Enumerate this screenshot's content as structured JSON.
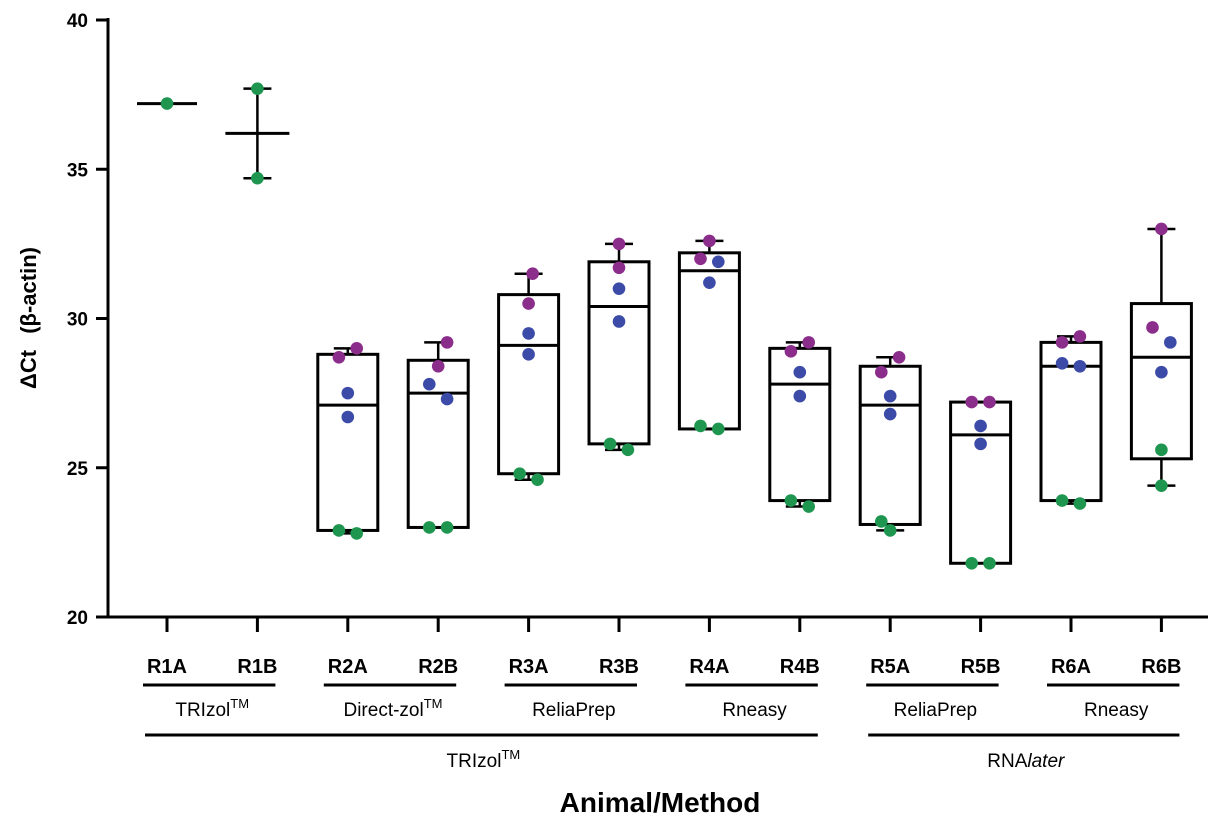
{
  "chart_data": {
    "type": "box",
    "title": "",
    "xlabel": "Animal/Method",
    "ylabel_prefix": "ΔCt",
    "ylabel_paren": "(β-actin)",
    "ylim": [
      20,
      40
    ],
    "yticks": [
      20,
      25,
      30,
      35,
      40
    ],
    "categories": [
      "R1A",
      "R1B",
      "R2A",
      "R2B",
      "R3A",
      "R3B",
      "R4A",
      "R4B",
      "R5A",
      "R5B",
      "R6A",
      "R6B"
    ],
    "colors": {
      "purple": "#8B2E8B",
      "blue": "#3C4BA8",
      "green": "#1F9650"
    },
    "boxes": [
      {
        "cat": "R1A",
        "mode": "line",
        "median": 37.2
      },
      {
        "cat": "R1B",
        "mode": "bar",
        "min": 34.7,
        "median": 36.2,
        "max": 37.7
      },
      {
        "cat": "R2A",
        "mode": "box",
        "min": 22.8,
        "q1": 22.9,
        "median": 27.1,
        "q3": 28.8,
        "max": 29.0
      },
      {
        "cat": "R2B",
        "mode": "box",
        "min": 23.0,
        "q1": 23.0,
        "median": 27.5,
        "q3": 28.6,
        "max": 29.2
      },
      {
        "cat": "R3A",
        "mode": "box",
        "min": 24.6,
        "q1": 24.8,
        "median": 29.1,
        "q3": 30.8,
        "max": 31.5
      },
      {
        "cat": "R3B",
        "mode": "box",
        "min": 25.6,
        "q1": 25.8,
        "median": 30.4,
        "q3": 31.9,
        "max": 32.5
      },
      {
        "cat": "R4A",
        "mode": "box",
        "min": 26.3,
        "q1": 26.3,
        "median": 31.6,
        "q3": 32.2,
        "max": 32.6
      },
      {
        "cat": "R4B",
        "mode": "box",
        "min": 23.7,
        "q1": 23.9,
        "median": 27.8,
        "q3": 29.0,
        "max": 29.2
      },
      {
        "cat": "R5A",
        "mode": "box",
        "min": 22.9,
        "q1": 23.1,
        "median": 27.1,
        "q3": 28.4,
        "max": 28.7
      },
      {
        "cat": "R5B",
        "mode": "box",
        "min": 21.8,
        "q1": 21.8,
        "median": 26.1,
        "q3": 27.2,
        "max": 27.2
      },
      {
        "cat": "R6A",
        "mode": "box",
        "min": 23.8,
        "q1": 23.9,
        "median": 28.4,
        "q3": 29.2,
        "max": 29.4
      },
      {
        "cat": "R6B",
        "mode": "box",
        "min": 24.4,
        "q1": 25.3,
        "median": 28.7,
        "q3": 30.5,
        "max": 33.0
      }
    ],
    "points": [
      {
        "cat": "R1A",
        "dx": 0,
        "y": 37.2,
        "color": "green"
      },
      {
        "cat": "R1B",
        "dx": 0,
        "y": 37.7,
        "color": "green"
      },
      {
        "cat": "R1B",
        "dx": 0,
        "y": 34.7,
        "color": "green"
      },
      {
        "cat": "R2A",
        "dx": -0.22,
        "y": 28.7,
        "color": "purple"
      },
      {
        "cat": "R2A",
        "dx": 0.22,
        "y": 29.0,
        "color": "purple"
      },
      {
        "cat": "R2A",
        "dx": 0,
        "y": 27.5,
        "color": "blue"
      },
      {
        "cat": "R2A",
        "dx": 0,
        "y": 26.7,
        "color": "blue"
      },
      {
        "cat": "R2A",
        "dx": -0.22,
        "y": 22.9,
        "color": "green"
      },
      {
        "cat": "R2A",
        "dx": 0.22,
        "y": 22.8,
        "color": "green"
      },
      {
        "cat": "R2B",
        "dx": 0.22,
        "y": 29.2,
        "color": "purple"
      },
      {
        "cat": "R2B",
        "dx": 0,
        "y": 28.4,
        "color": "purple"
      },
      {
        "cat": "R2B",
        "dx": -0.22,
        "y": 27.8,
        "color": "blue"
      },
      {
        "cat": "R2B",
        "dx": 0.22,
        "y": 27.3,
        "color": "blue"
      },
      {
        "cat": "R2B",
        "dx": -0.22,
        "y": 23.0,
        "color": "green"
      },
      {
        "cat": "R2B",
        "dx": 0.22,
        "y": 23.0,
        "color": "green"
      },
      {
        "cat": "R3A",
        "dx": 0.1,
        "y": 31.5,
        "color": "purple"
      },
      {
        "cat": "R3A",
        "dx": 0,
        "y": 30.5,
        "color": "purple"
      },
      {
        "cat": "R3A",
        "dx": 0,
        "y": 29.5,
        "color": "blue"
      },
      {
        "cat": "R3A",
        "dx": 0,
        "y": 28.8,
        "color": "blue"
      },
      {
        "cat": "R3A",
        "dx": -0.22,
        "y": 24.8,
        "color": "green"
      },
      {
        "cat": "R3A",
        "dx": 0.22,
        "y": 24.6,
        "color": "green"
      },
      {
        "cat": "R3B",
        "dx": 0,
        "y": 32.5,
        "color": "purple"
      },
      {
        "cat": "R3B",
        "dx": 0,
        "y": 31.7,
        "color": "purple"
      },
      {
        "cat": "R3B",
        "dx": 0,
        "y": 31.0,
        "color": "blue"
      },
      {
        "cat": "R3B",
        "dx": 0,
        "y": 29.9,
        "color": "blue"
      },
      {
        "cat": "R3B",
        "dx": -0.22,
        "y": 25.8,
        "color": "green"
      },
      {
        "cat": "R3B",
        "dx": 0.22,
        "y": 25.6,
        "color": "green"
      },
      {
        "cat": "R4A",
        "dx": 0,
        "y": 32.6,
        "color": "purple"
      },
      {
        "cat": "R4A",
        "dx": -0.22,
        "y": 32.0,
        "color": "purple"
      },
      {
        "cat": "R4A",
        "dx": 0.22,
        "y": 31.9,
        "color": "blue"
      },
      {
        "cat": "R4A",
        "dx": 0,
        "y": 31.2,
        "color": "blue"
      },
      {
        "cat": "R4A",
        "dx": -0.22,
        "y": 26.4,
        "color": "green"
      },
      {
        "cat": "R4A",
        "dx": 0.22,
        "y": 26.3,
        "color": "green"
      },
      {
        "cat": "R4B",
        "dx": -0.22,
        "y": 28.9,
        "color": "purple"
      },
      {
        "cat": "R4B",
        "dx": 0.22,
        "y": 29.2,
        "color": "purple"
      },
      {
        "cat": "R4B",
        "dx": 0,
        "y": 28.2,
        "color": "blue"
      },
      {
        "cat": "R4B",
        "dx": 0,
        "y": 27.4,
        "color": "blue"
      },
      {
        "cat": "R4B",
        "dx": -0.22,
        "y": 23.9,
        "color": "green"
      },
      {
        "cat": "R4B",
        "dx": 0.22,
        "y": 23.7,
        "color": "green"
      },
      {
        "cat": "R5A",
        "dx": -0.22,
        "y": 28.2,
        "color": "purple"
      },
      {
        "cat": "R5A",
        "dx": 0.22,
        "y": 28.7,
        "color": "purple"
      },
      {
        "cat": "R5A",
        "dx": 0,
        "y": 27.4,
        "color": "blue"
      },
      {
        "cat": "R5A",
        "dx": 0,
        "y": 26.8,
        "color": "blue"
      },
      {
        "cat": "R5A",
        "dx": -0.22,
        "y": 23.2,
        "color": "green"
      },
      {
        "cat": "R5A",
        "dx": 0,
        "y": 22.9,
        "color": "green"
      },
      {
        "cat": "R5B",
        "dx": -0.22,
        "y": 27.2,
        "color": "purple"
      },
      {
        "cat": "R5B",
        "dx": 0.22,
        "y": 27.2,
        "color": "purple"
      },
      {
        "cat": "R5B",
        "dx": 0,
        "y": 26.4,
        "color": "blue"
      },
      {
        "cat": "R5B",
        "dx": 0,
        "y": 25.8,
        "color": "blue"
      },
      {
        "cat": "R5B",
        "dx": -0.22,
        "y": 21.8,
        "color": "green"
      },
      {
        "cat": "R5B",
        "dx": 0.22,
        "y": 21.8,
        "color": "green"
      },
      {
        "cat": "R6A",
        "dx": -0.22,
        "y": 29.2,
        "color": "purple"
      },
      {
        "cat": "R6A",
        "dx": 0.22,
        "y": 29.4,
        "color": "purple"
      },
      {
        "cat": "R6A",
        "dx": -0.22,
        "y": 28.5,
        "color": "blue"
      },
      {
        "cat": "R6A",
        "dx": 0.22,
        "y": 28.4,
        "color": "blue"
      },
      {
        "cat": "R6A",
        "dx": -0.22,
        "y": 23.9,
        "color": "green"
      },
      {
        "cat": "R6A",
        "dx": 0.22,
        "y": 23.8,
        "color": "green"
      },
      {
        "cat": "R6B",
        "dx": 0,
        "y": 33.0,
        "color": "purple"
      },
      {
        "cat": "R6B",
        "dx": -0.22,
        "y": 29.7,
        "color": "purple"
      },
      {
        "cat": "R6B",
        "dx": 0.22,
        "y": 29.2,
        "color": "blue"
      },
      {
        "cat": "R6B",
        "dx": 0,
        "y": 28.2,
        "color": "blue"
      },
      {
        "cat": "R6B",
        "dx": 0,
        "y": 25.6,
        "color": "green"
      },
      {
        "cat": "R6B",
        "dx": 0,
        "y": 24.4,
        "color": "green"
      }
    ],
    "method_groups": [
      {
        "label": "TRIzol",
        "sup": "TM",
        "from": "R1A",
        "to": "R1B"
      },
      {
        "label": "Direct-zol",
        "sup": "TM",
        "from": "R2A",
        "to": "R2B"
      },
      {
        "label": "ReliaPrep",
        "sup": "",
        "from": "R3A",
        "to": "R3B"
      },
      {
        "label": "Rneasy",
        "sup": "",
        "from": "R4A",
        "to": "R4B"
      },
      {
        "label": "ReliaPrep",
        "sup": "",
        "from": "R5A",
        "to": "R5B"
      },
      {
        "label": "Rneasy",
        "sup": "",
        "from": "R6A",
        "to": "R6B"
      }
    ],
    "storage_groups": [
      {
        "label": "TRIzol",
        "sup": "TM",
        "italic": "",
        "from": "R1A",
        "to": "R4B"
      },
      {
        "label": "RNA",
        "sup": "",
        "italic": "later",
        "from": "R5A",
        "to": "R6B"
      }
    ]
  }
}
